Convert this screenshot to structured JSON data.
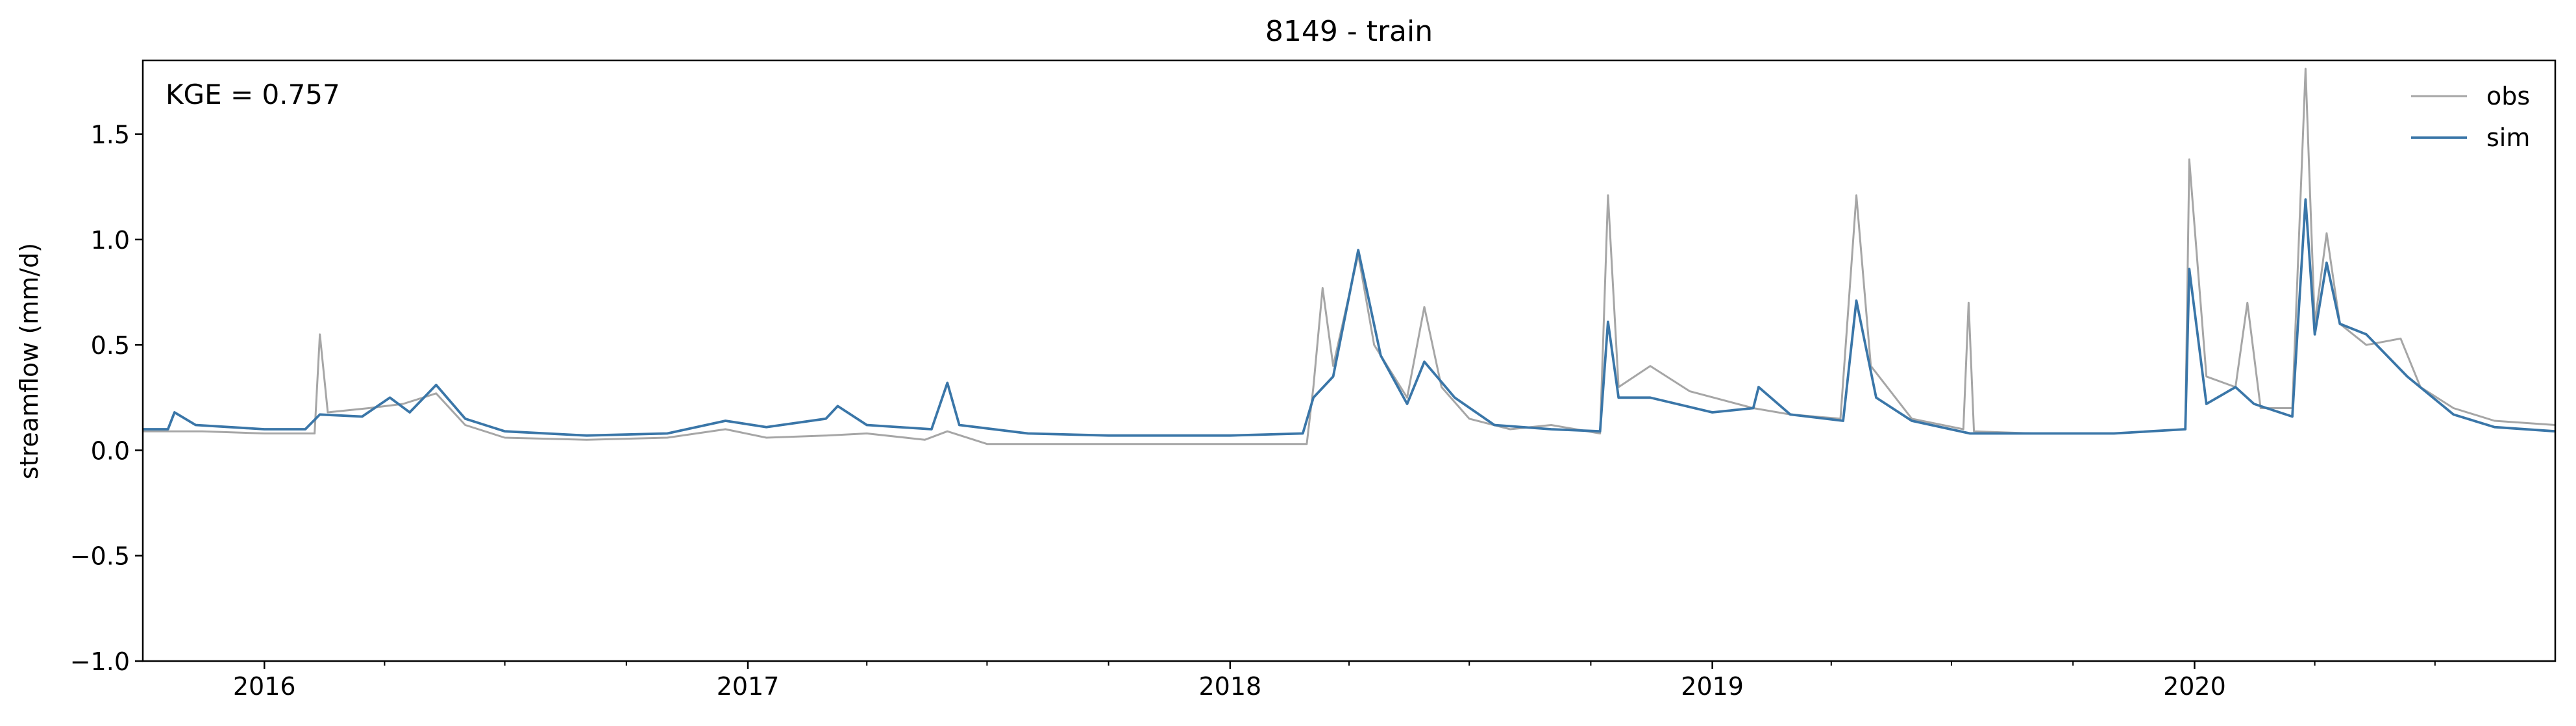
{
  "chart_data": {
    "type": "line",
    "title": "8149 - train",
    "ylabel": "streamflow (mm/d)",
    "xlabel": "",
    "annotation": "KGE = 0.757",
    "xlim": [
      "2015-10-01",
      "2020-09-30"
    ],
    "ylim": [
      -1.0,
      1.85
    ],
    "yticks": [
      -1.0,
      -0.5,
      0.0,
      0.5,
      1.0,
      1.5
    ],
    "ytick_labels": [
      "−1.0",
      "−0.5",
      "0.0",
      "0.5",
      "1.0",
      "1.5"
    ],
    "xticks": [
      "2016-01-01",
      "2017-01-01",
      "2018-01-01",
      "2019-01-01",
      "2020-01-01"
    ],
    "xtick_labels": [
      "2016",
      "2017",
      "2018",
      "2019",
      "2020"
    ],
    "grid": false,
    "legend_position": "top-right",
    "series": [
      {
        "name": "obs",
        "color": "#a6a6a6",
        "points": [
          [
            "2015-10-01",
            0.09
          ],
          [
            "2015-11-15",
            0.09
          ],
          [
            "2016-01-01",
            0.08
          ],
          [
            "2016-02-08",
            0.08
          ],
          [
            "2016-02-12",
            0.55
          ],
          [
            "2016-02-18",
            0.18
          ],
          [
            "2016-03-20",
            0.2
          ],
          [
            "2016-04-15",
            0.22
          ],
          [
            "2016-05-10",
            0.27
          ],
          [
            "2016-06-01",
            0.12
          ],
          [
            "2016-07-01",
            0.06
          ],
          [
            "2016-09-01",
            0.05
          ],
          [
            "2016-11-01",
            0.06
          ],
          [
            "2016-12-15",
            0.1
          ],
          [
            "2017-01-15",
            0.06
          ],
          [
            "2017-03-01",
            0.07
          ],
          [
            "2017-04-01",
            0.08
          ],
          [
            "2017-05-15",
            0.05
          ],
          [
            "2017-06-01",
            0.09
          ],
          [
            "2017-07-01",
            0.03
          ],
          [
            "2017-09-01",
            0.03
          ],
          [
            "2017-11-01",
            0.03
          ],
          [
            "2018-01-01",
            0.03
          ],
          [
            "2018-02-28",
            0.03
          ],
          [
            "2018-03-05",
            0.3
          ],
          [
            "2018-03-12",
            0.77
          ],
          [
            "2018-03-20",
            0.4
          ],
          [
            "2018-04-08",
            0.93
          ],
          [
            "2018-04-20",
            0.5
          ],
          [
            "2018-05-15",
            0.25
          ],
          [
            "2018-05-28",
            0.68
          ],
          [
            "2018-06-10",
            0.3
          ],
          [
            "2018-07-01",
            0.15
          ],
          [
            "2018-08-01",
            0.1
          ],
          [
            "2018-09-01",
            0.12
          ],
          [
            "2018-10-08",
            0.08
          ],
          [
            "2018-10-14",
            1.21
          ],
          [
            "2018-10-22",
            0.3
          ],
          [
            "2018-11-15",
            0.4
          ],
          [
            "2018-12-15",
            0.28
          ],
          [
            "2019-02-01",
            0.2
          ],
          [
            "2019-03-01",
            0.17
          ],
          [
            "2019-04-08",
            0.15
          ],
          [
            "2019-04-20",
            1.21
          ],
          [
            "2019-05-01",
            0.4
          ],
          [
            "2019-06-01",
            0.15
          ],
          [
            "2019-07-10",
            0.1
          ],
          [
            "2019-07-14",
            0.7
          ],
          [
            "2019-07-18",
            0.09
          ],
          [
            "2019-09-01",
            0.08
          ],
          [
            "2019-11-01",
            0.08
          ],
          [
            "2019-12-25",
            0.1
          ],
          [
            "2019-12-28",
            1.38
          ],
          [
            "2020-01-10",
            0.35
          ],
          [
            "2020-02-01",
            0.3
          ],
          [
            "2020-02-10",
            0.7
          ],
          [
            "2020-02-20",
            0.2
          ],
          [
            "2020-03-15",
            0.2
          ],
          [
            "2020-03-25",
            1.81
          ],
          [
            "2020-04-01",
            0.6
          ],
          [
            "2020-04-10",
            1.03
          ],
          [
            "2020-04-20",
            0.6
          ],
          [
            "2020-05-10",
            0.5
          ],
          [
            "2020-06-05",
            0.53
          ],
          [
            "2020-06-20",
            0.3
          ],
          [
            "2020-07-15",
            0.2
          ],
          [
            "2020-08-15",
            0.14
          ],
          [
            "2020-09-30",
            0.12
          ]
        ]
      },
      {
        "name": "sim",
        "color": "#3a76a8",
        "points": [
          [
            "2015-10-01",
            0.1
          ],
          [
            "2015-10-20",
            0.1
          ],
          [
            "2015-10-25",
            0.18
          ],
          [
            "2015-11-10",
            0.12
          ],
          [
            "2016-01-01",
            0.1
          ],
          [
            "2016-02-01",
            0.1
          ],
          [
            "2016-02-12",
            0.17
          ],
          [
            "2016-03-15",
            0.16
          ],
          [
            "2016-04-05",
            0.25
          ],
          [
            "2016-04-20",
            0.18
          ],
          [
            "2016-05-10",
            0.31
          ],
          [
            "2016-06-01",
            0.15
          ],
          [
            "2016-07-01",
            0.09
          ],
          [
            "2016-09-01",
            0.07
          ],
          [
            "2016-11-01",
            0.08
          ],
          [
            "2016-12-15",
            0.14
          ],
          [
            "2017-01-15",
            0.11
          ],
          [
            "2017-03-01",
            0.15
          ],
          [
            "2017-03-10",
            0.21
          ],
          [
            "2017-04-01",
            0.12
          ],
          [
            "2017-05-20",
            0.1
          ],
          [
            "2017-06-01",
            0.32
          ],
          [
            "2017-06-10",
            0.12
          ],
          [
            "2017-08-01",
            0.08
          ],
          [
            "2017-10-01",
            0.07
          ],
          [
            "2018-01-01",
            0.07
          ],
          [
            "2018-02-25",
            0.08
          ],
          [
            "2018-03-05",
            0.25
          ],
          [
            "2018-03-20",
            0.35
          ],
          [
            "2018-04-08",
            0.95
          ],
          [
            "2018-04-25",
            0.45
          ],
          [
            "2018-05-15",
            0.22
          ],
          [
            "2018-05-28",
            0.42
          ],
          [
            "2018-06-20",
            0.25
          ],
          [
            "2018-07-20",
            0.12
          ],
          [
            "2018-09-01",
            0.1
          ],
          [
            "2018-10-08",
            0.09
          ],
          [
            "2018-10-14",
            0.61
          ],
          [
            "2018-10-22",
            0.25
          ],
          [
            "2018-11-15",
            0.25
          ],
          [
            "2019-01-01",
            0.18
          ],
          [
            "2019-02-01",
            0.2
          ],
          [
            "2019-02-05",
            0.3
          ],
          [
            "2019-03-01",
            0.17
          ],
          [
            "2019-04-10",
            0.14
          ],
          [
            "2019-04-20",
            0.71
          ],
          [
            "2019-05-05",
            0.25
          ],
          [
            "2019-06-01",
            0.14
          ],
          [
            "2019-07-15",
            0.08
          ],
          [
            "2019-09-01",
            0.08
          ],
          [
            "2019-11-01",
            0.08
          ],
          [
            "2019-12-25",
            0.1
          ],
          [
            "2019-12-28",
            0.86
          ],
          [
            "2020-01-10",
            0.22
          ],
          [
            "2020-02-01",
            0.3
          ],
          [
            "2020-02-15",
            0.22
          ],
          [
            "2020-03-15",
            0.16
          ],
          [
            "2020-03-25",
            1.19
          ],
          [
            "2020-04-01",
            0.55
          ],
          [
            "2020-04-10",
            0.89
          ],
          [
            "2020-04-20",
            0.6
          ],
          [
            "2020-05-10",
            0.55
          ],
          [
            "2020-06-10",
            0.35
          ],
          [
            "2020-07-15",
            0.17
          ],
          [
            "2020-08-15",
            0.11
          ],
          [
            "2020-09-30",
            0.09
          ]
        ]
      }
    ]
  }
}
